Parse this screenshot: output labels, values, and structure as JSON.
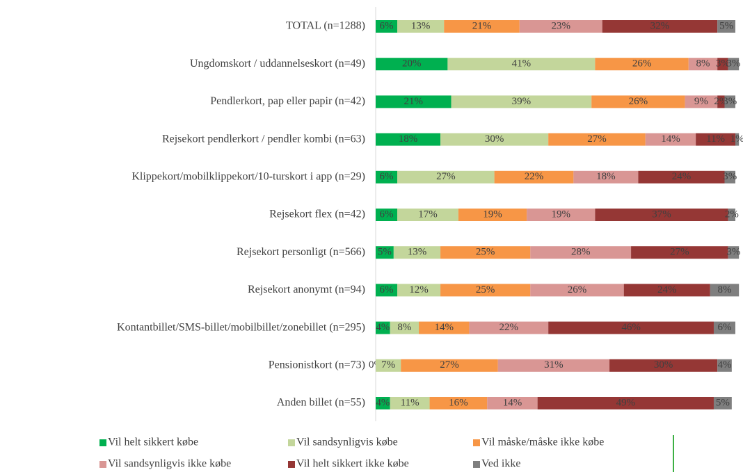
{
  "chart_data": {
    "type": "stacked_barh",
    "categories": [
      "TOTAL (n=1288)",
      "Ungdomskort / uddannelseskort (n=49)",
      "Pendlerkort, pap eller papir (n=42)",
      "Rejsekort pendlerkort / pendler kombi (n=63)",
      "Klippekort/mobilklippekort/10-turskort i app (n=29)",
      "Rejsekort flex (n=42)",
      "Rejsekort personligt (n=566)",
      "Rejsekort anonymt (n=94)",
      "Kontantbillet/SMS-billet/mobilbillet/zonebillet (n=295)",
      "Pensionistkort (n=73)",
      "Anden billet (n=55)"
    ],
    "xlim": [
      0,
      100
    ],
    "legend": "bottom",
    "series": [
      {
        "name": "Vil helt sikkert købe",
        "color": "#00b050",
        "values": [
          6,
          20,
          21,
          18,
          6,
          6,
          5,
          6,
          4,
          0,
          4
        ],
        "value_labels": [
          "6%",
          "20%",
          "21%",
          "18%",
          "6%",
          "6%",
          "5%",
          "6%",
          "4%",
          "0%",
          "4%"
        ]
      },
      {
        "name": "Vil sandsynligvis købe",
        "color": "#c3d69b",
        "values": [
          13,
          41,
          39,
          30,
          27,
          17,
          13,
          12,
          8,
          7,
          11
        ],
        "value_labels": [
          "13%",
          "41%",
          "39%",
          "30%",
          "27%",
          "17%",
          "13%",
          "12%",
          "8%",
          "7%",
          "11%"
        ]
      },
      {
        "name": "Vil måske/måske ikke købe",
        "color": "#f79646",
        "values": [
          21,
          26,
          26,
          27,
          22,
          19,
          25,
          25,
          14,
          27,
          16
        ],
        "value_labels": [
          "21%",
          "26%",
          "26%",
          "27%",
          "22%",
          "19%",
          "25%",
          "25%",
          "14%",
          "27%",
          "16%"
        ]
      },
      {
        "name": "Vil sandsynligvis ikke købe",
        "color": "#d99694",
        "values": [
          23,
          8,
          9,
          14,
          18,
          19,
          28,
          26,
          22,
          31,
          14
        ],
        "value_labels": [
          "23%",
          "8%",
          "9%",
          "14%",
          "18%",
          "19%",
          "28%",
          "26%",
          "22%",
          "31%",
          "14%"
        ]
      },
      {
        "name": "Vil helt sikkert ikke købe",
        "color": "#953735",
        "values": [
          32,
          3,
          2,
          11,
          24,
          37,
          27,
          24,
          46,
          30,
          49
        ],
        "value_labels": [
          "32%",
          "3%",
          "2%",
          "11%",
          "24%",
          "37%",
          "27%",
          "24%",
          "46%",
          "30%",
          "49%"
        ]
      },
      {
        "name": "Ved ikke",
        "color": "#7f7f7f",
        "values": [
          5,
          3,
          3,
          1,
          3,
          2,
          3,
          8,
          6,
          4,
          5
        ],
        "value_labels": [
          "5%",
          "3%",
          "3%",
          "1%",
          "3%",
          "2%",
          "3%",
          "8%",
          "6%",
          "4%",
          "5%"
        ]
      }
    ]
  }
}
